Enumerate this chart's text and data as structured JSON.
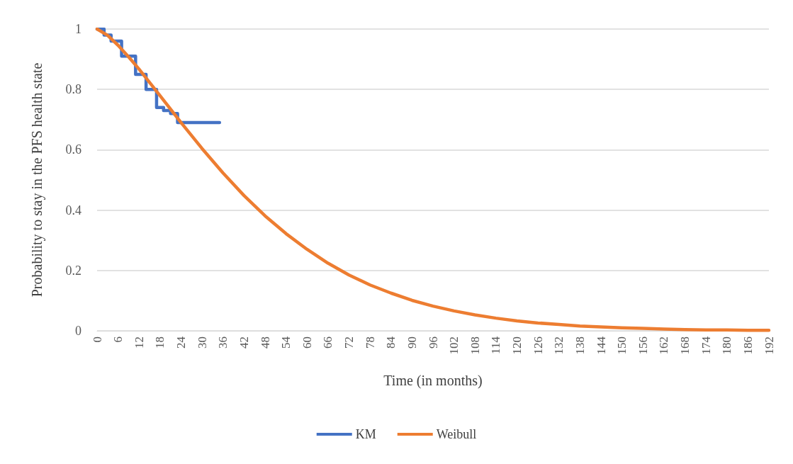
{
  "chart_data": {
    "type": "line",
    "xlabel": "Time (in months)",
    "ylabel": "Probability to stay in the PFS health state",
    "series": [
      {
        "name": "KM",
        "type": "step",
        "color": "#4472c4",
        "x": [
          0,
          2,
          4,
          7,
          11,
          14,
          17,
          19,
          21,
          23,
          35
        ],
        "values": [
          1,
          0.98,
          0.96,
          0.91,
          0.85,
          0.8,
          0.74,
          0.73,
          0.72,
          0.69,
          0.69
        ]
      },
      {
        "name": "Weibull",
        "color": "#ed7d31",
        "x": [
          0,
          3,
          6,
          9,
          12,
          18,
          24,
          30,
          36,
          42,
          48,
          54,
          60,
          66,
          72,
          78,
          84,
          90,
          96,
          102,
          108,
          114,
          120,
          126,
          132,
          138,
          144,
          150,
          156,
          162,
          168,
          174,
          180,
          186,
          192
        ],
        "values": [
          1,
          0.979,
          0.946,
          0.908,
          0.867,
          0.779,
          0.69,
          0.604,
          0.523,
          0.448,
          0.381,
          0.322,
          0.27,
          0.224,
          0.185,
          0.152,
          0.125,
          0.101,
          0.082,
          0.066,
          0.053,
          0.042,
          0.033,
          0.026,
          0.021,
          0.016,
          0.013,
          0.01,
          0.008,
          0.006,
          0.004,
          0.003,
          0.003,
          0.002,
          0.002
        ]
      }
    ],
    "xlim": [
      0,
      192
    ],
    "xticks": [
      0,
      6,
      12,
      18,
      24,
      30,
      36,
      42,
      48,
      54,
      60,
      66,
      72,
      78,
      84,
      90,
      96,
      102,
      108,
      114,
      120,
      126,
      132,
      138,
      144,
      150,
      156,
      162,
      168,
      174,
      180,
      186,
      192
    ],
    "ylim": [
      0,
      1
    ],
    "yticks": [
      0,
      0.2,
      0.4,
      0.6,
      0.8,
      1
    ],
    "grid": "y",
    "legend": "bottom",
    "marker": "none",
    "line_style": "solid"
  }
}
